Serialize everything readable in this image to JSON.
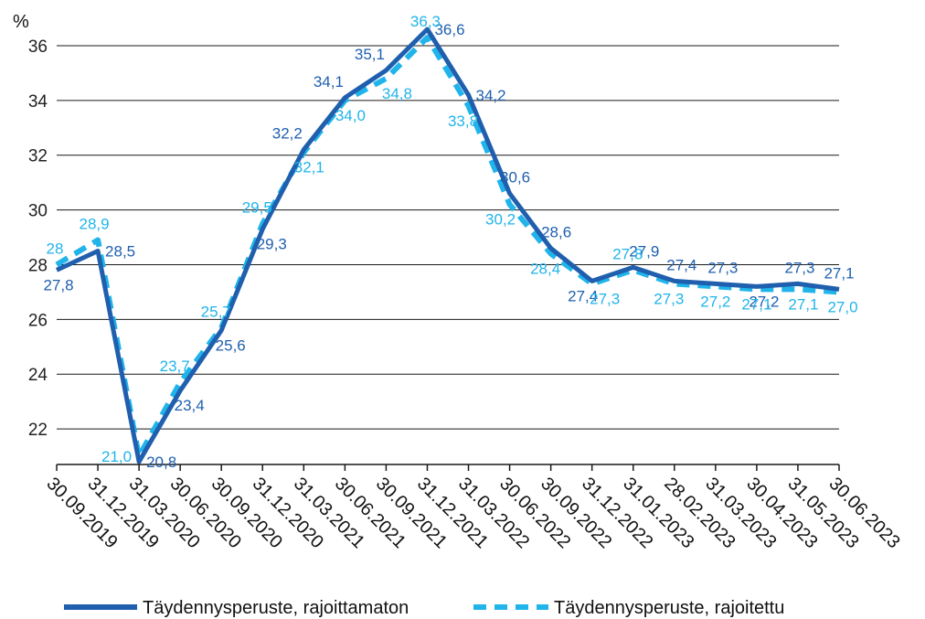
{
  "chart_data": {
    "type": "line",
    "ylabel": "%",
    "ylim": [
      20.7,
      37
    ],
    "yticks": [
      22,
      24,
      26,
      28,
      30,
      32,
      34,
      36
    ],
    "grid": true,
    "legend_position": "bottom",
    "categories": [
      "30.09.2019",
      "31.12.2019",
      "31.03.2020",
      "30.06.2020",
      "30.09.2020",
      "31.12.2020",
      "31.03.2021",
      "30.06.2021",
      "30.09.2021",
      "31.12.2021",
      "31.03.2022",
      "30.06.2022",
      "30.09.2022",
      "31.12.2022",
      "31.01.2023",
      "28.02.2023",
      "31.03.2023",
      "30.04.2023",
      "31.05.2023",
      "30.06.2023"
    ],
    "series": [
      {
        "name": "Täydennysperuste, rajoittamaton",
        "color": "#1f5fae",
        "style": "solid",
        "values": [
          27.8,
          28.5,
          20.8,
          23.4,
          25.6,
          29.3,
          32.2,
          34.1,
          35.1,
          36.6,
          34.2,
          30.6,
          28.6,
          27.4,
          27.9,
          27.4,
          27.3,
          27.2,
          27.3,
          27.1
        ],
        "labels": [
          "27,8",
          "28,5",
          "20,8",
          "23,4",
          "25,6",
          "29,3",
          "32,2",
          "34,1",
          "35,1",
          "36,6",
          "34,2",
          "30,6",
          "28,6",
          "27,4",
          "27,9",
          "27,4",
          "27,3",
          "27,2",
          "27,3",
          "27,1"
        ]
      },
      {
        "name": "Täydennysperuste, rajoitettu",
        "color": "#20b4ea",
        "style": "dashed",
        "values": [
          28.0,
          28.9,
          21.0,
          23.7,
          25.7,
          29.5,
          32.1,
          34.0,
          34.8,
          36.3,
          33.8,
          30.2,
          28.4,
          27.3,
          27.8,
          27.3,
          27.2,
          27.1,
          27.1,
          27.0
        ],
        "labels": [
          "28",
          "28,9",
          "21,0",
          "23,7",
          "25,7",
          "29,5",
          "32,1",
          "34,0",
          "34,8",
          "36,3",
          "33,8",
          "30,2",
          "28,4",
          "27,3",
          "27,8",
          "27,3",
          "27,2",
          "27,1",
          "27,1",
          "27,0"
        ]
      }
    ]
  }
}
